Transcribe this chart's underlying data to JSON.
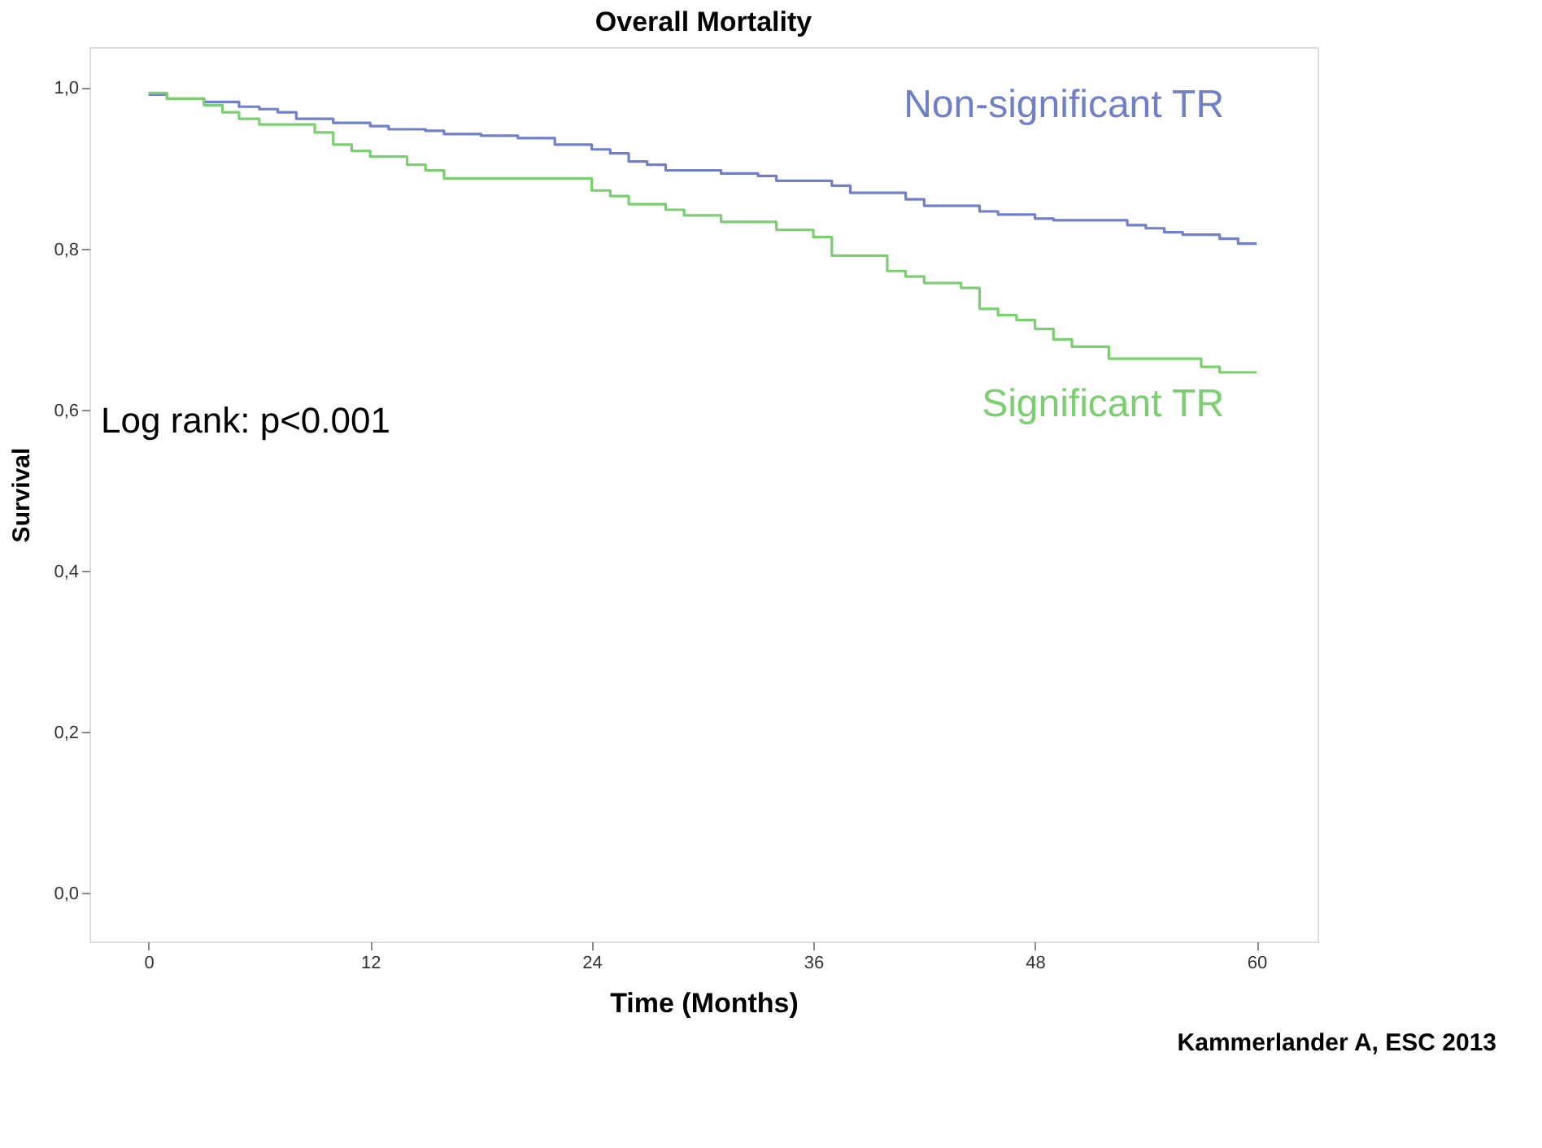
{
  "chart_data": {
    "type": "step",
    "title": "Overall Mortality",
    "xlabel": "Time (Months)",
    "ylabel": "Survival",
    "xlim": [
      -3.2,
      63.3
    ],
    "ylim": [
      -0.06,
      1.051
    ],
    "xticks": [
      0,
      12,
      24,
      36,
      48,
      60
    ],
    "yticks": [
      {
        "value": 0,
        "label": "0,0"
      },
      {
        "value": 0.2,
        "label": "0,2"
      },
      {
        "value": 0.4,
        "label": "0,4"
      },
      {
        "value": 0.6,
        "label": "0,6"
      },
      {
        "value": 0.8,
        "label": "0,8"
      },
      {
        "value": 1.0,
        "label": "1,0"
      }
    ],
    "grid": false,
    "line_style": "solid",
    "marker": "none",
    "series": [
      {
        "name": "Non-significant TR",
        "color": "#7080c8",
        "x": [
          0,
          1,
          3,
          4.9,
          6,
          7,
          8,
          10,
          12,
          13,
          15,
          16,
          18,
          20,
          22,
          24,
          25,
          26,
          27,
          28,
          31,
          33,
          34,
          37,
          38,
          41,
          42,
          45,
          46,
          48,
          49,
          53,
          54,
          55,
          56,
          58,
          59,
          60
        ],
        "values": [
          0.992,
          0.987,
          0.983,
          0.977,
          0.974,
          0.97,
          0.962,
          0.957,
          0.953,
          0.949,
          0.947,
          0.943,
          0.941,
          0.938,
          0.93,
          0.924,
          0.919,
          0.909,
          0.905,
          0.898,
          0.894,
          0.891,
          0.885,
          0.879,
          0.87,
          0.862,
          0.854,
          0.847,
          0.843,
          0.838,
          0.836,
          0.83,
          0.826,
          0.821,
          0.818,
          0.813,
          0.807,
          0.807
        ]
      },
      {
        "name": "Significant TR",
        "color": "#7ccf70",
        "x": [
          0,
          1,
          3,
          4,
          4.9,
          6,
          9,
          10,
          11,
          12,
          14,
          15,
          16,
          24,
          25,
          26,
          28,
          29,
          31,
          34,
          36,
          37,
          40,
          41,
          42,
          44,
          45,
          46,
          47,
          48,
          49,
          50,
          52,
          57,
          58,
          60
        ],
        "values": [
          0.994,
          0.987,
          0.979,
          0.97,
          0.962,
          0.955,
          0.945,
          0.93,
          0.922,
          0.915,
          0.905,
          0.898,
          0.888,
          0.873,
          0.866,
          0.856,
          0.849,
          0.842,
          0.834,
          0.824,
          0.815,
          0.792,
          0.773,
          0.766,
          0.758,
          0.752,
          0.726,
          0.718,
          0.712,
          0.701,
          0.688,
          0.679,
          0.664,
          0.654,
          0.647,
          0.647
        ]
      }
    ],
    "annotations": [
      "Log rank: p<0.001",
      "Kammerlander A, ESC 2013"
    ]
  }
}
